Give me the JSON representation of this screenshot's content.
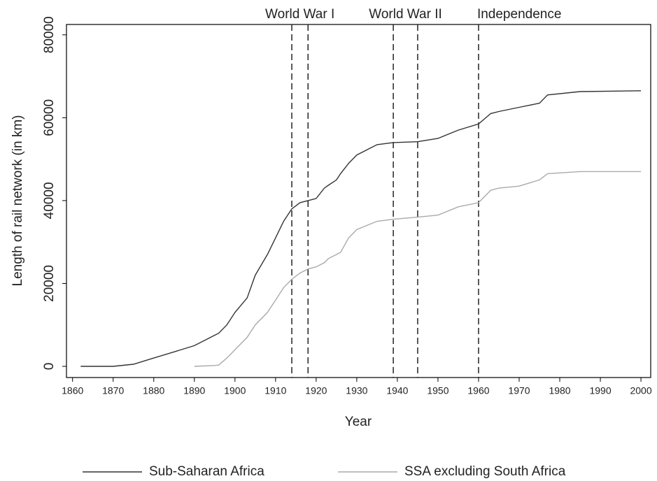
{
  "chart_data": {
    "type": "line",
    "x_label": "Year",
    "y_label": "Length of rail network (in km)",
    "x": [
      1862,
      1870,
      1875,
      1880,
      1885,
      1890,
      1895,
      1896,
      1898,
      1900,
      1903,
      1905,
      1908,
      1910,
      1912,
      1914,
      1916,
      1918,
      1920,
      1922,
      1923,
      1925,
      1926,
      1928,
      1930,
      1935,
      1939,
      1945,
      1950,
      1955,
      1960,
      1963,
      1965,
      1970,
      1975,
      1977,
      1985,
      2000
    ],
    "series": [
      {
        "name": "Sub-Saharan Africa",
        "color": "#333333",
        "values": [
          0,
          0,
          500,
          2000,
          3500,
          5000,
          7500,
          8000,
          10000,
          13000,
          16500,
          22000,
          27000,
          31000,
          35000,
          38000,
          39500,
          40000,
          40500,
          43000,
          43700,
          45000,
          46500,
          49000,
          51000,
          53500,
          54000,
          54200,
          55000,
          57000,
          58500,
          61000,
          61500,
          62500,
          63500,
          65500,
          66300,
          66500
        ]
      },
      {
        "name": "SSA excluding South Africa",
        "color": "#aaaaaa",
        "values": [
          null,
          null,
          null,
          null,
          null,
          0,
          200,
          300,
          2000,
          4000,
          7000,
          10000,
          13000,
          16000,
          19000,
          21000,
          22500,
          23500,
          24000,
          25000,
          26000,
          27000,
          27500,
          31000,
          33000,
          35000,
          35500,
          36000,
          36500,
          38500,
          39500,
          42500,
          43000,
          43500,
          45000,
          46500,
          47000,
          47000
        ]
      }
    ],
    "events": [
      {
        "label": "World War I",
        "start": 1914,
        "end": 1918
      },
      {
        "label": "World War II",
        "start": 1939,
        "end": 1945
      },
      {
        "label": "Independence",
        "start": 1960
      }
    ],
    "xlim": [
      1858.5,
      2002.4
    ],
    "ylim": [
      -2700,
      82500
    ],
    "xticks": [
      1860,
      1870,
      1880,
      1890,
      1900,
      1910,
      1920,
      1930,
      1940,
      1950,
      1960,
      1970,
      1980,
      1990,
      2000
    ],
    "yticks": [
      0,
      20000,
      40000,
      60000,
      80000
    ],
    "grid": false,
    "legend": "bottom"
  }
}
